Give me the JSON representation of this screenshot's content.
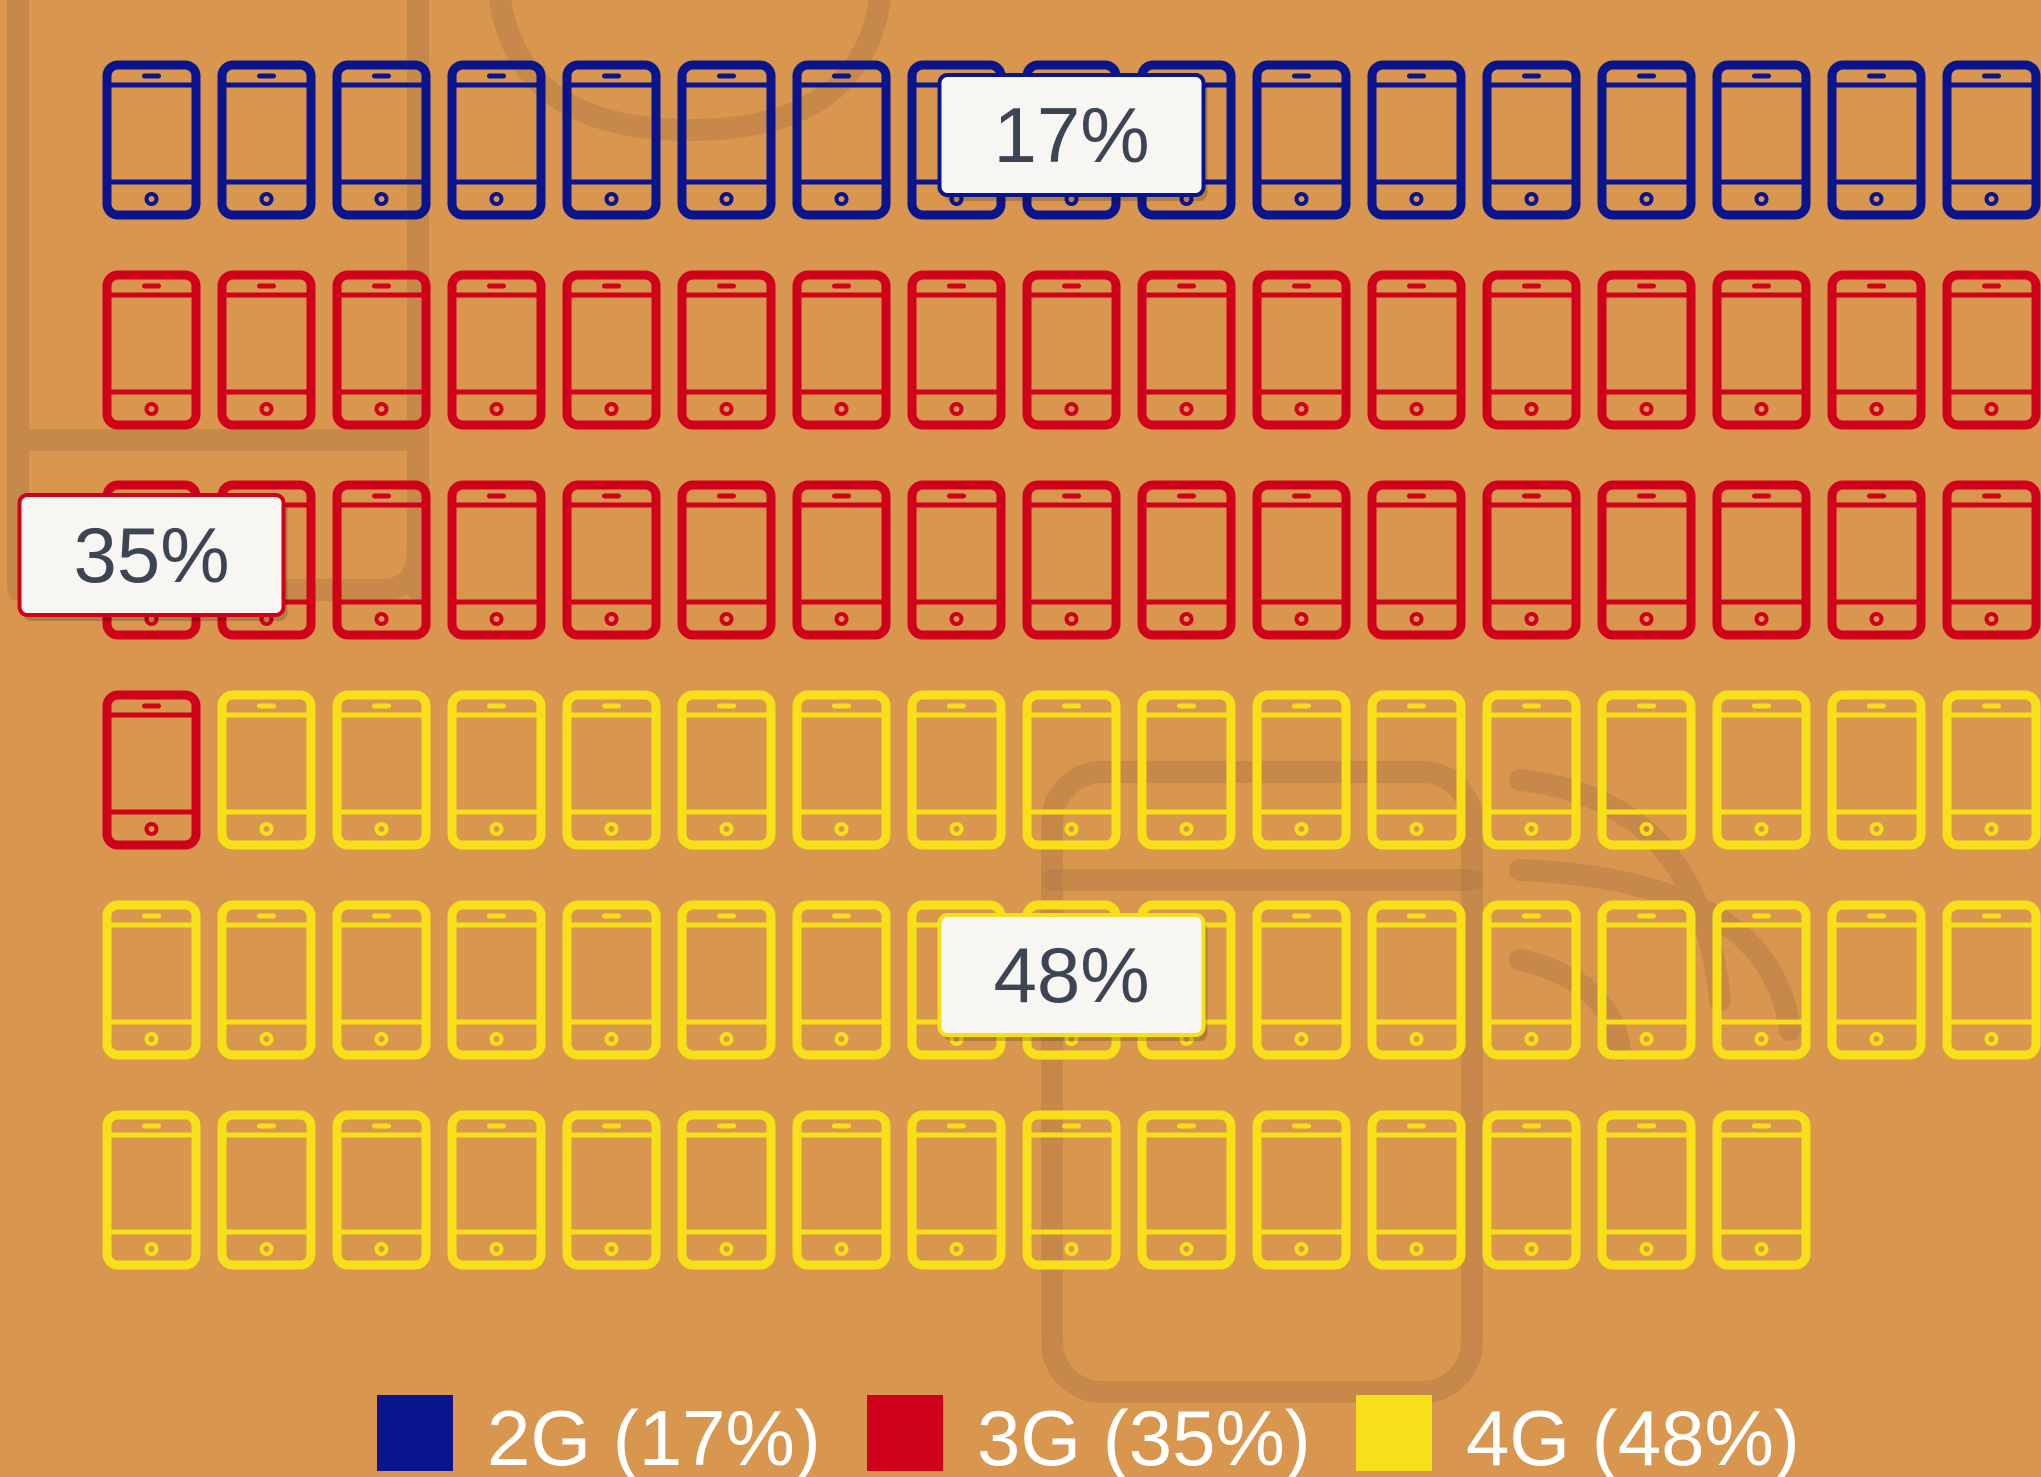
{
  "chart_data": {
    "type": "waffle",
    "series": [
      {
        "name": "2G (17%)",
        "color": "#0a148c",
        "values": [
          17
        ],
        "value_labels": [
          "17%"
        ]
      },
      {
        "name": "3G (35%)",
        "color": "#d0021b",
        "values": [
          35
        ],
        "value_labels": [
          "35%"
        ]
      },
      {
        "name": "4G (48%)",
        "color": "#f7e01a",
        "values": [
          48
        ],
        "value_labels": [
          "48%"
        ]
      }
    ]
  }
}
